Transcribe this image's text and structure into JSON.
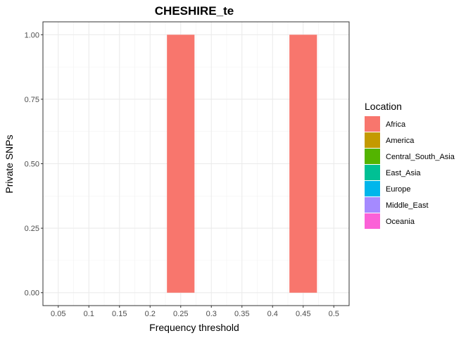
{
  "chart_data": {
    "type": "bar",
    "title": "CHESHIRE_te",
    "xlabel": "Frequency threshold",
    "ylabel": "Private SNPs",
    "x_ticks": [
      "0.05",
      "0.1",
      "0.15",
      "0.2",
      "0.25",
      "0.3",
      "0.35",
      "0.4",
      "0.45",
      "0.5"
    ],
    "y_ticks": [
      "0.00",
      "0.25",
      "0.50",
      "0.75",
      "1.00"
    ],
    "xlim": [
      0.025,
      0.525
    ],
    "ylim": [
      -0.05,
      1.05
    ],
    "bar_width": 0.045,
    "grid": true,
    "legend_position": "right",
    "legend": {
      "title": "Location",
      "entries": [
        {
          "name": "Africa",
          "color": "#F8766D"
        },
        {
          "name": "America",
          "color": "#C49A00"
        },
        {
          "name": "Central_South_Asia",
          "color": "#53B400"
        },
        {
          "name": "East_Asia",
          "color": "#00C094"
        },
        {
          "name": "Europe",
          "color": "#00B6EB"
        },
        {
          "name": "Middle_East",
          "color": "#A58AFF"
        },
        {
          "name": "Oceania",
          "color": "#FB61D7"
        }
      ]
    },
    "series": [
      {
        "name": "Africa",
        "color": "#F8766D",
        "x": [
          0.05,
          0.1,
          0.15,
          0.2,
          0.25,
          0.3,
          0.35,
          0.4,
          0.45,
          0.5
        ],
        "values": [
          0,
          0,
          0,
          0,
          1,
          0,
          0,
          0,
          1,
          0
        ]
      }
    ]
  }
}
